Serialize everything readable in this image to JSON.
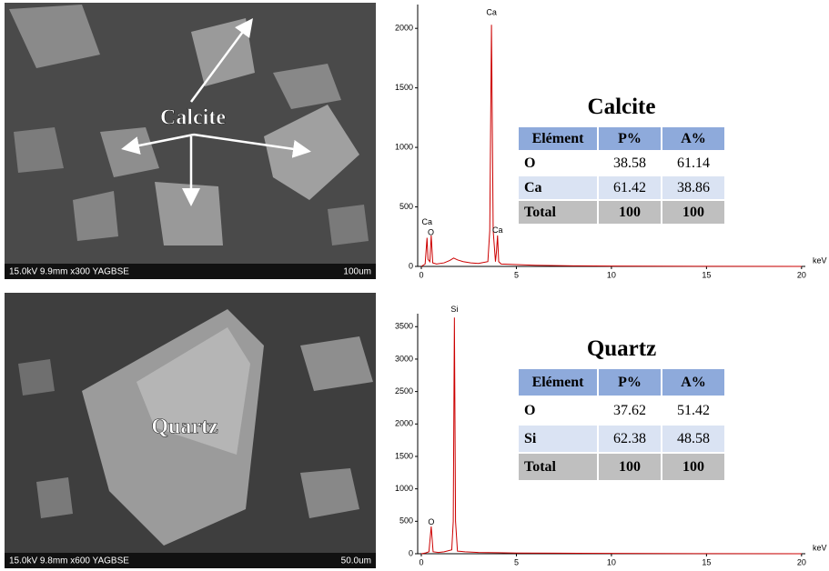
{
  "chart_data": [
    {
      "type": "line",
      "x_unit": "keV",
      "x": [
        0,
        0.2,
        0.3,
        0.35,
        0.45,
        0.52,
        0.6,
        0.8,
        1.2,
        1.5,
        1.7,
        1.9,
        2.2,
        2.6,
        3.0,
        3.5,
        3.6,
        3.69,
        3.78,
        3.9,
        3.95,
        4.01,
        4.07,
        4.2,
        5,
        6,
        8,
        10,
        15,
        20
      ],
      "series": [
        {
          "color": "#cc0000",
          "values": [
            0,
            20,
            240,
            60,
            40,
            260,
            30,
            20,
            30,
            50,
            70,
            55,
            40,
            30,
            25,
            40,
            300,
            2030,
            300,
            40,
            120,
            260,
            40,
            20,
            15,
            10,
            5,
            3,
            1,
            0
          ]
        }
      ],
      "xlim": [
        0,
        20.2
      ],
      "ylim": [
        0,
        2200
      ],
      "xticks": [
        0,
        5,
        10,
        15,
        20
      ],
      "yticks": [
        0,
        500,
        1000,
        1500,
        2000
      ],
      "annotations": [
        {
          "text": "Ca",
          "x": 0.3,
          "y": 370
        },
        {
          "text": "O",
          "x": 0.5,
          "y": 280
        },
        {
          "text": "Ca",
          "x": 3.69,
          "y": 2130
        },
        {
          "text": "Ca",
          "x": 4.01,
          "y": 300
        }
      ]
    },
    {
      "type": "line",
      "x_unit": "keV",
      "x": [
        0,
        0.2,
        0.4,
        0.52,
        0.62,
        0.9,
        1.2,
        1.6,
        1.68,
        1.74,
        1.8,
        1.9,
        2.3,
        3,
        4,
        5,
        7,
        10,
        15,
        20
      ],
      "series": [
        {
          "color": "#cc0000",
          "values": [
            0,
            10,
            30,
            420,
            30,
            20,
            30,
            60,
            500,
            3640,
            500,
            40,
            30,
            20,
            15,
            10,
            8,
            5,
            2,
            0
          ]
        }
      ],
      "xlim": [
        0,
        20.2
      ],
      "ylim": [
        0,
        3700
      ],
      "xticks": [
        0,
        5,
        10,
        15,
        20
      ],
      "yticks": [
        0,
        500,
        1000,
        1500,
        2000,
        2500,
        3000,
        3500
      ],
      "annotations": [
        {
          "text": "Si",
          "x": 1.74,
          "y": 3760
        },
        {
          "text": "O",
          "x": 0.52,
          "y": 480
        }
      ]
    }
  ],
  "images": [
    {
      "label": "Calcite",
      "caption": "15.0kV 9.9mm x300 YAGBSE",
      "scale": "100um"
    },
    {
      "label": "Quartz",
      "caption": "15.0kV 9.8mm x600 YAGBSE",
      "scale": "50.0um"
    }
  ],
  "tables": [
    {
      "title": "Calcite",
      "header": [
        "Elément",
        "P%",
        "A%"
      ],
      "rows": [
        [
          "O",
          38.58,
          61.14
        ],
        [
          "Ca",
          61.42,
          38.86
        ],
        [
          "Total",
          100,
          100
        ]
      ]
    },
    {
      "title": "Quartz",
      "header": [
        "Elément",
        "P%",
        "A%"
      ],
      "rows": [
        [
          "O",
          37.62,
          51.42
        ],
        [
          "Si",
          62.38,
          48.58
        ],
        [
          "Total",
          100,
          100
        ]
      ]
    }
  ]
}
